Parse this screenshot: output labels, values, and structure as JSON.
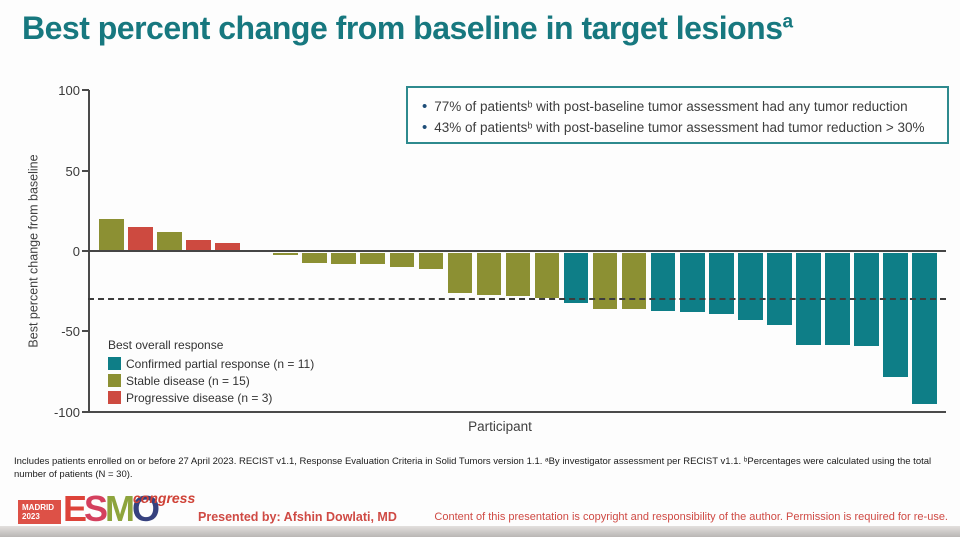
{
  "title": {
    "text": "Best percent change from baseline in target lesions",
    "superscript": "a"
  },
  "annotation_box": {
    "bullets": [
      "77% of patientsᵇ with post-baseline tumor assessment had any tumor reduction",
      "43% of patientsᵇ with post-baseline tumor assessment had tumor reduction > 30%"
    ],
    "bullet_color": "#1f4e79",
    "border_color": "#2e8a8e"
  },
  "chart_data": {
    "type": "bar",
    "title": "",
    "xlabel": "Participant",
    "ylabel": "Best percent change from baseline",
    "ylim": [
      -100,
      100
    ],
    "y_ticks": [
      100,
      50,
      0,
      -50,
      -100
    ],
    "reference_line": -30,
    "grid": false,
    "legend": {
      "title": "Best overall response",
      "position": "lower-left",
      "entries": [
        {
          "key": "CPR",
          "label": "Confirmed partial response (n = 11)",
          "color": "#0e7e87"
        },
        {
          "key": "SD",
          "label": "Stable disease (n = 15)",
          "color": "#8c9033"
        },
        {
          "key": "PD",
          "label": "Progressive disease (n = 3)",
          "color": "#cd4a40"
        }
      ]
    },
    "bars": [
      {
        "value": 20,
        "response": "SD"
      },
      {
        "value": 15,
        "response": "PD"
      },
      {
        "value": 12,
        "response": "SD"
      },
      {
        "value": 7,
        "response": "PD"
      },
      {
        "value": 5,
        "response": "PD"
      },
      {
        "value": 0,
        "response": "SD"
      },
      {
        "value": -1,
        "response": "SD"
      },
      {
        "value": -6,
        "response": "SD"
      },
      {
        "value": -7,
        "response": "SD"
      },
      {
        "value": -7,
        "response": "SD"
      },
      {
        "value": -9,
        "response": "SD"
      },
      {
        "value": -10,
        "response": "SD"
      },
      {
        "value": -25,
        "response": "SD"
      },
      {
        "value": -26,
        "response": "SD"
      },
      {
        "value": -27,
        "response": "SD"
      },
      {
        "value": -28,
        "response": "SD"
      },
      {
        "value": -31,
        "response": "CPR"
      },
      {
        "value": -35,
        "response": "SD"
      },
      {
        "value": -35,
        "response": "SD"
      },
      {
        "value": -36,
        "response": "CPR"
      },
      {
        "value": -37,
        "response": "CPR"
      },
      {
        "value": -38,
        "response": "CPR"
      },
      {
        "value": -42,
        "response": "CPR"
      },
      {
        "value": -45,
        "response": "CPR"
      },
      {
        "value": -57,
        "response": "CPR"
      },
      {
        "value": -57,
        "response": "CPR"
      },
      {
        "value": -58,
        "response": "CPR"
      },
      {
        "value": -77,
        "response": "CPR"
      },
      {
        "value": -94,
        "response": "CPR"
      }
    ]
  },
  "footnote": "Includes patients enrolled on or before 27 April 2023. RECIST v1.1, Response Evaluation Criteria in Solid Tumors version 1.1. ᵃBy investigator assessment per RECIST v1.1. ᵇPercentages were calculated using the total number of patients (N = 30).",
  "footer": {
    "logo": {
      "city": "MADRID",
      "year": "2023",
      "congress": "congress",
      "letters": [
        {
          "ch": "E",
          "color": "#dd4339"
        },
        {
          "ch": "S",
          "color": "#d4405e"
        },
        {
          "ch": "M",
          "color": "#8ea43d"
        },
        {
          "ch": "O",
          "color": "#36417e"
        }
      ]
    },
    "presented_by": "Presented by: Afshin Dowlati, MD",
    "copyright": "Content of this presentation is copyright and responsibility of the author. Permission is required for re-use."
  }
}
